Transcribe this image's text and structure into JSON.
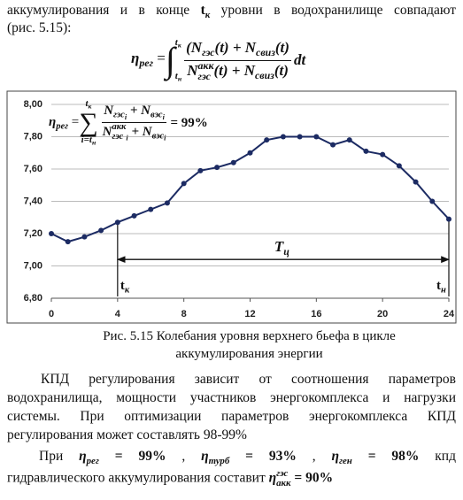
{
  "intro": {
    "line_1": [
      {
        "text": "аккумулирования и в конце "
      },
      {
        "b": "t"
      },
      {
        "sub": "к"
      },
      {
        "text": " уровни в водохранилище совпадают"
      }
    ],
    "line_2": [
      {
        "text": "(рис. 5.15):"
      }
    ]
  },
  "formula_1": {
    "lhs": [
      {
        "math": "η"
      },
      {
        "sub": "рег"
      },
      {
        "text": " = "
      }
    ],
    "operator": "∫",
    "upper": [
      {
        "math": "t"
      },
      {
        "sub": "к"
      }
    ],
    "lower": [
      {
        "math": "t"
      },
      {
        "sub": "н"
      }
    ],
    "numerator": [
      {
        "math": "(N"
      },
      {
        "sub": "гэс"
      },
      {
        "math": "(t) + N"
      },
      {
        "sub": "свиз"
      },
      {
        "math": "(t)"
      }
    ],
    "denominator": [
      {
        "math": "N"
      },
      {
        "stack": {
          "sup": "акк",
          "sub": "гэс"
        }
      },
      {
        "math": "(t) + N"
      },
      {
        "sub": "свиз"
      },
      {
        "math": "(t)"
      }
    ],
    "tail": [
      {
        "math": " dt"
      }
    ]
  },
  "chart_data": {
    "type": "line",
    "x": [
      0,
      1,
      2,
      3,
      4,
      5,
      6,
      7,
      8,
      9,
      10,
      11,
      12,
      13,
      14,
      15,
      16,
      17,
      18,
      19,
      20,
      21,
      22,
      23,
      24
    ],
    "series": [
      {
        "color": "#1c2b63",
        "values": [
          7.2,
          7.15,
          7.18,
          7.22,
          7.27,
          7.31,
          7.35,
          7.39,
          7.51,
          7.59,
          7.61,
          7.64,
          7.7,
          7.78,
          7.8,
          7.8,
          7.8,
          7.75,
          7.78,
          7.71,
          7.69,
          7.62,
          7.52,
          7.4,
          7.29
        ]
      }
    ],
    "xlim": [
      0,
      24
    ],
    "xticks": [
      0,
      4,
      8,
      12,
      16,
      20,
      24
    ],
    "ylim": [
      6.8,
      8.0
    ],
    "yticks": [
      {
        "value": 6.8,
        "label": "6,80"
      },
      {
        "value": 7.0,
        "label": "7,00"
      },
      {
        "value": 7.2,
        "label": "7,20"
      },
      {
        "value": 7.4,
        "label": "7,40"
      },
      {
        "value": 7.6,
        "label": "7,60"
      },
      {
        "value": 7.8,
        "label": "7,80"
      },
      {
        "value": 8.0,
        "label": "8,00"
      }
    ],
    "grid": true,
    "annotation_formula": {
      "lhs": [
        {
          "math": "η"
        },
        {
          "sub": "рег"
        },
        {
          "text": " = "
        }
      ],
      "operator": "∑",
      "upper": [
        {
          "math": "t"
        },
        {
          "sub": "к"
        }
      ],
      "lower": [
        {
          "math": "i=t"
        },
        {
          "sub": "н"
        }
      ],
      "numerator": [
        {
          "math": "N"
        },
        {
          "sub": "гэс"
        },
        {
          "sub2": "i"
        },
        {
          "math": " + N"
        },
        {
          "sub": "вэс"
        },
        {
          "sub2": "i"
        }
      ],
      "denominator": [
        {
          "math": "N"
        },
        {
          "stack": {
            "sup": "акк",
            "sub": "гэс"
          }
        },
        {
          "sub2": "i"
        },
        {
          "math": " + N"
        },
        {
          "sub": "вэс"
        },
        {
          "sub2": "i"
        }
      ],
      "tail": [
        {
          "text": " = 99%"
        }
      ]
    },
    "span": {
      "label": [
        {
          "math": "T"
        },
        {
          "sub": "ц"
        }
      ],
      "from": 4,
      "to": 24,
      "y": 7.04
    },
    "markers": [
      {
        "x": 4,
        "label": [
          {
            "b": "t"
          },
          {
            "sub": "к"
          }
        ]
      },
      {
        "x": 24,
        "label": [
          {
            "b": "t"
          },
          {
            "sub": "н"
          }
        ]
      }
    ]
  },
  "caption": {
    "line_1": "Рис. 5.15 Колебания уровня верхнего бьефа в цикле",
    "line_2": "аккумулирования энергии"
  },
  "paragraph_1": "КПД регулирования зависит от соотношения параметров водохранилища, мощности участников энергокомплекса и нагрузки системы. При оптимизации параметров энергокомплекса КПД регулирования может составлять 98-99%",
  "paragraph_2": {
    "line_1": [
      {
        "text": "При "
      },
      {
        "math": "η"
      },
      {
        "sub": "рег"
      },
      {
        "b": " = 99% "
      },
      {
        "text": " , "
      },
      {
        "math": "η"
      },
      {
        "sub": "турб"
      },
      {
        "b": " = 93% "
      },
      {
        "text": " , "
      },
      {
        "math": "η"
      },
      {
        "sub": "ген"
      },
      {
        "b": " = 98% "
      },
      {
        "text": " кпд"
      }
    ],
    "line_2": [
      {
        "text": "гидравлического аккумулирования составит "
      },
      {
        "math": "η"
      },
      {
        "stack": {
          "sup": "гэс",
          "sub": "акк"
        }
      },
      {
        "b": " = 90%"
      }
    ]
  }
}
